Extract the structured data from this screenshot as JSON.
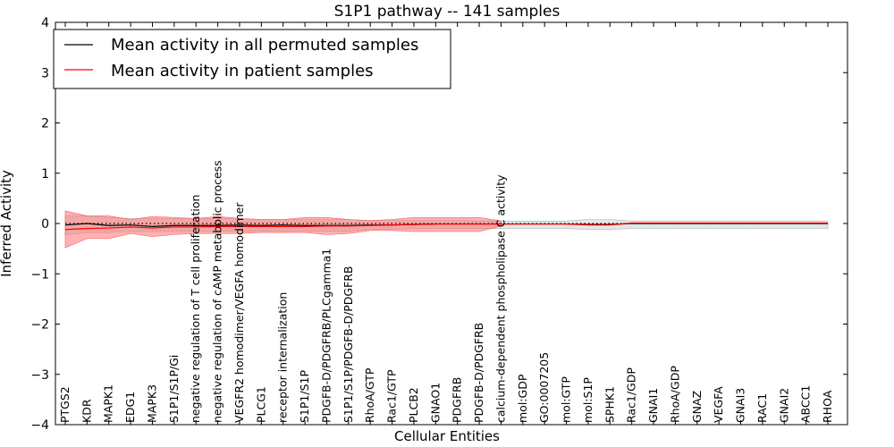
{
  "chart_data": {
    "type": "line",
    "title": "S1P1 pathway -- 141 samples",
    "xlabel": "Cellular Entities",
    "ylabel": "Inferred Activity",
    "ylim": [
      -4,
      4
    ],
    "yticks": [
      "−4",
      "−3",
      "−2",
      "−1",
      "0",
      "1",
      "2",
      "3",
      "4"
    ],
    "yticks_values": [
      -4,
      -3,
      -2,
      -1,
      0,
      1,
      2,
      3,
      4
    ],
    "categories": [
      "PTGS2",
      "KDR",
      "MAPK1",
      "EDG1",
      "MAPK3",
      "S1P1/S1P/Gi",
      "negative regulation of T cell proliferation",
      "negative regulation of cAMP metabolic process",
      "VEGFR2 homodimer/VEGFA homodimer",
      "PLCG1",
      "receptor internalization",
      "S1P1/S1P",
      "PDGFB-D/PDGFRB/PLCgamma1",
      "S1P1/S1P/PDGFB-D/PDGFRB",
      "RhoA/GTP",
      "Rac1/GTP",
      "PLCB2",
      "GNAO1",
      "PDGFRB",
      "PDGFB-D/PDGFRB",
      "calcium-dependent phospholipase C activity",
      "mol:GDP",
      "GO:0007205",
      "mol:GTP",
      "mol:S1P",
      "SPHK1",
      "Rac1/GDP",
      "GNAI1",
      "RhoA/GDP",
      "GNAZ",
      "VEGFA",
      "GNAI3",
      "RAC1",
      "GNAI2",
      "ABCC1",
      "RHOA"
    ],
    "series": [
      {
        "name": "Mean activity in all permuted samples",
        "color": "#000000",
        "values": [
          -0.03,
          0.0,
          -0.04,
          -0.03,
          -0.06,
          -0.04,
          -0.04,
          -0.04,
          -0.03,
          -0.04,
          -0.03,
          -0.04,
          -0.04,
          -0.04,
          -0.03,
          -0.03,
          -0.02,
          -0.01,
          -0.01,
          -0.01,
          -0.01,
          -0.01,
          -0.01,
          -0.01,
          -0.02,
          -0.02,
          0.0,
          0.0,
          0.0,
          0.0,
          0.0,
          0.0,
          0.0,
          0.0,
          0.0,
          0.0
        ],
        "band_upper": [
          0.15,
          0.15,
          0.12,
          0.1,
          0.1,
          0.1,
          0.1,
          0.1,
          0.1,
          0.08,
          0.08,
          0.08,
          0.08,
          0.08,
          0.06,
          0.06,
          0.06,
          0.06,
          0.06,
          0.05,
          0.05,
          0.05,
          0.05,
          0.05,
          0.08,
          0.08,
          0.05,
          0.05,
          0.05,
          0.05,
          0.05,
          0.05,
          0.05,
          0.05,
          0.05,
          0.05
        ],
        "band_lower": [
          -0.22,
          -0.18,
          -0.18,
          -0.16,
          -0.16,
          -0.16,
          -0.16,
          -0.16,
          -0.16,
          -0.15,
          -0.15,
          -0.15,
          -0.15,
          -0.15,
          -0.12,
          -0.12,
          -0.1,
          -0.1,
          -0.1,
          -0.1,
          -0.1,
          -0.1,
          -0.1,
          -0.1,
          -0.12,
          -0.12,
          -0.1,
          -0.1,
          -0.1,
          -0.1,
          -0.1,
          -0.1,
          -0.1,
          -0.1,
          -0.1,
          -0.1
        ],
        "band_color": "#c8c8c8"
      },
      {
        "name": "Mean activity in patient samples",
        "color": "#ff0000",
        "values": [
          -0.12,
          -0.1,
          -0.09,
          -0.07,
          -0.09,
          -0.07,
          -0.07,
          -0.06,
          -0.06,
          -0.06,
          -0.06,
          -0.06,
          -0.05,
          -0.05,
          -0.04,
          -0.03,
          -0.02,
          -0.01,
          -0.01,
          -0.01,
          -0.01,
          -0.01,
          -0.01,
          -0.01,
          -0.03,
          -0.03,
          0.01,
          0.01,
          0.01,
          0.01,
          0.01,
          0.01,
          0.01,
          0.01,
          0.01,
          0.01
        ],
        "band_upper": [
          0.25,
          0.15,
          0.15,
          0.08,
          0.14,
          0.12,
          0.1,
          0.14,
          0.1,
          0.08,
          0.08,
          0.12,
          0.12,
          0.08,
          0.06,
          0.08,
          0.12,
          0.12,
          0.12,
          0.12,
          0.05,
          0.05,
          0.05,
          0.05,
          0.0,
          0.0,
          0.03,
          0.03,
          0.03,
          0.03,
          0.03,
          0.03,
          0.03,
          0.03,
          0.03,
          0.03
        ],
        "band_lower": [
          -0.48,
          -0.3,
          -0.3,
          -0.2,
          -0.26,
          -0.22,
          -0.2,
          -0.2,
          -0.2,
          -0.18,
          -0.18,
          -0.18,
          -0.22,
          -0.2,
          -0.14,
          -0.14,
          -0.16,
          -0.16,
          -0.16,
          -0.16,
          -0.05,
          -0.05,
          -0.05,
          -0.05,
          -0.05,
          -0.05,
          -0.01,
          -0.01,
          -0.01,
          -0.01,
          -0.01,
          -0.01,
          -0.01,
          -0.01,
          -0.01,
          -0.01
        ],
        "band_color": "#ff6666",
        "band_range": [
          0,
          20
        ]
      }
    ],
    "reference_line": {
      "value": 0,
      "style": "dotted",
      "color": "#000000"
    },
    "legend": {
      "position": "top-left",
      "entries": [
        {
          "label": "Mean activity in all permuted samples",
          "color": "#000000"
        },
        {
          "label": "Mean activity in patient samples",
          "color": "#ff0000"
        }
      ]
    }
  }
}
